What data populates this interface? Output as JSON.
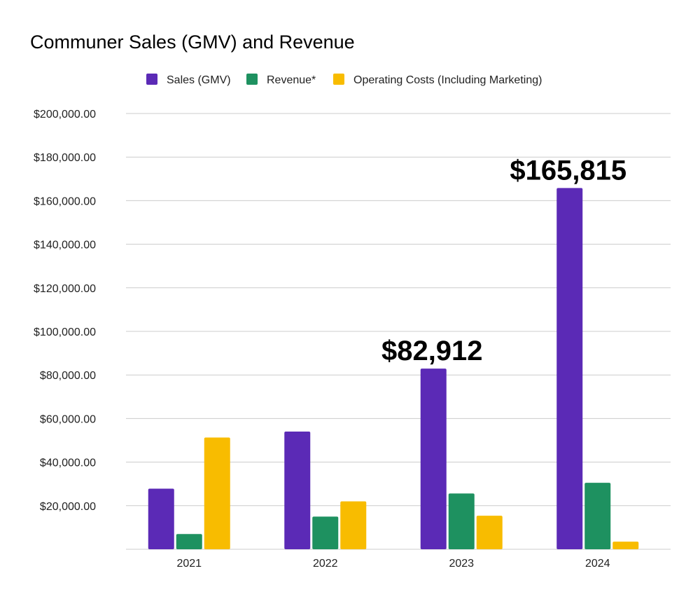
{
  "chart_data": {
    "type": "bar",
    "title": "Communer Sales (GMV) and Revenue",
    "xlabel": "",
    "ylabel": "",
    "categories": [
      "2021",
      "2022",
      "2023",
      "2024"
    ],
    "series": [
      {
        "name": "Sales (GMV)",
        "color": "#5b2ab6",
        "values": [
          27800,
          54000,
          82912,
          165815
        ]
      },
      {
        "name": "Revenue*",
        "color": "#1e9160",
        "values": [
          7000,
          15000,
          25600,
          30500
        ]
      },
      {
        "name": "Operating Costs (Including Marketing)",
        "color": "#f8bc00",
        "values": [
          51300,
          22000,
          15400,
          3500
        ]
      }
    ],
    "ylim": [
      0,
      200000
    ],
    "yticks": [
      20000,
      40000,
      60000,
      80000,
      100000,
      120000,
      140000,
      160000,
      180000,
      200000
    ],
    "ytick_labels": [
      "$20,000.00",
      "$40,000.00",
      "$60,000.00",
      "$80,000.00",
      "$100,000.00",
      "$120,000.00",
      "$140,000.00",
      "$160,000.00",
      "$180,000.00",
      "$200,000.00"
    ],
    "grid": true,
    "legend_position": "top-center",
    "annotations": [
      {
        "text": "$82,912",
        "category": "2023",
        "series": "Sales (GMV)",
        "value": 82912
      },
      {
        "text": "$165,815",
        "category": "2024",
        "series": "Sales (GMV)",
        "value": 165815
      }
    ]
  }
}
